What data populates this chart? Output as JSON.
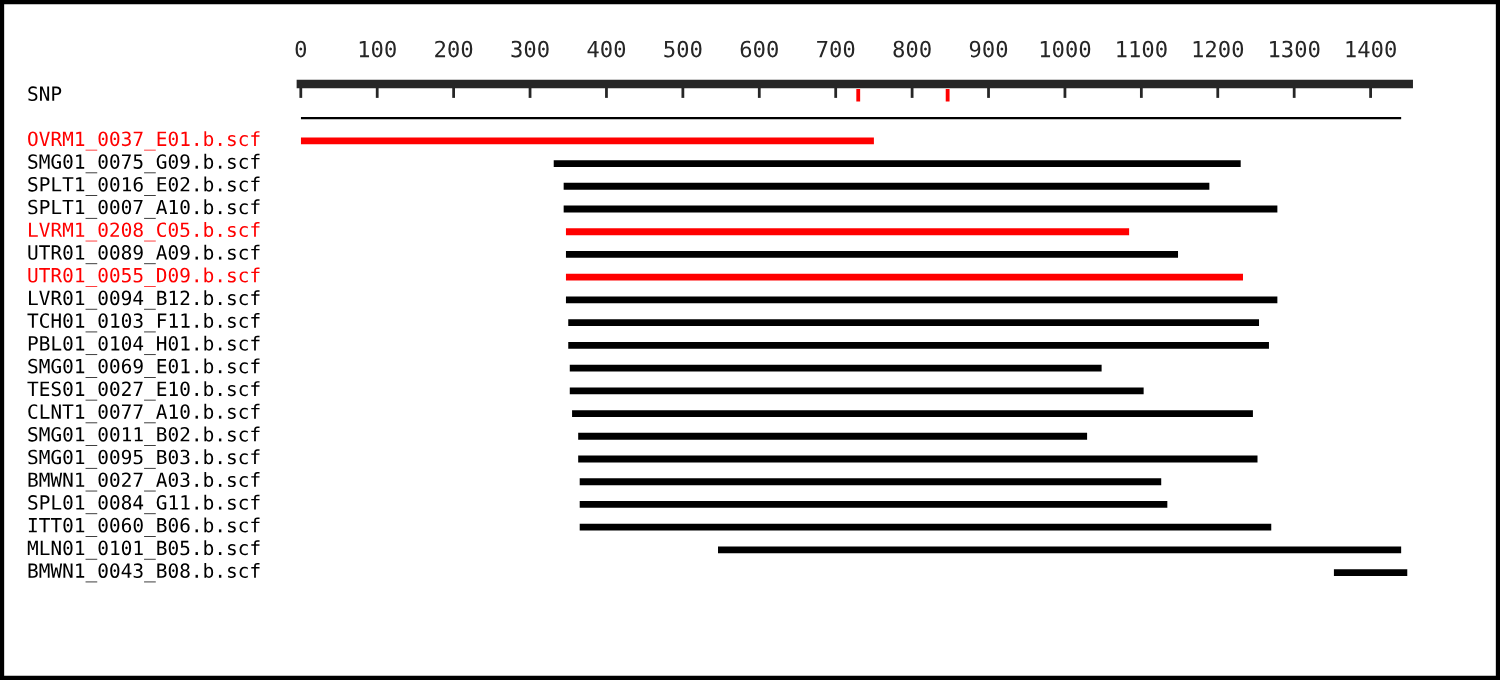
{
  "chart_data": {
    "type": "bar",
    "orientation": "horizontal",
    "categories": [
      "SNP",
      null,
      "OVRM1_0037_E01.b.scf",
      "SMG01_0075_G09.b.scf",
      "SPLT1_0016_E02.b.scf",
      "SPLT1_0007_A10.b.scf",
      "LVRM1_0208_C05.b.scf",
      "UTR01_0089_A09.b.scf",
      "UTR01_0055_D09.b.scf",
      "LVR01_0094_B12.b.scf",
      "TCH01_0103_F11.b.scf",
      "PBL01_0104_H01.b.scf",
      "SMG01_0069_E01.b.scf",
      "TES01_0027_E10.b.scf",
      "CLNT1_0077_A10.b.scf",
      "SMG01_0011_B02.b.scf",
      "SMG01_0095_B03.b.scf",
      "BMWN1_0027_A03.b.scf",
      "SPL01_0084_G11.b.scf",
      "ITT01_0060_B06.b.scf",
      "MLN01_0101_B05.b.scf",
      "BMWN1_0043_B08.b.scf"
    ],
    "series": [
      {
        "values": [
          5,
          1440,
          750,
          899,
          845,
          934,
          737,
          801,
          886,
          931,
          904,
          917,
          696,
          751,
          891,
          666,
          889,
          761,
          769,
          905,
          894,
          96
        ],
        "base": [
          727,
          0,
          0,
          331,
          344,
          344,
          347,
          347,
          347,
          347,
          350,
          350,
          352,
          352,
          355,
          363,
          363,
          365,
          365,
          365,
          546,
          1352
        ],
        "colors": [
          "#ff0000",
          "#000000",
          "#ff0000",
          "#000000",
          "#000000",
          "#000000",
          "#ff0000",
          "#000000",
          "#ff0000",
          "#000000",
          "#000000",
          "#000000",
          "#000000",
          "#000000",
          "#000000",
          "#000000",
          "#000000",
          "#000000",
          "#000000",
          "#000000",
          "#000000",
          "#000000"
        ]
      },
      {
        "values": [
          5,
          null,
          null,
          null,
          null,
          null,
          null,
          null,
          null,
          null,
          null,
          null,
          null,
          null,
          null,
          null,
          null,
          null,
          null,
          null,
          null,
          null
        ],
        "base": [
          844,
          null,
          null,
          null,
          null,
          null,
          null,
          null,
          null,
          null,
          null,
          null,
          null,
          null,
          null,
          null,
          null,
          null,
          null,
          null,
          null,
          null
        ],
        "colors": [
          "#ff0000",
          null,
          null,
          null,
          null,
          null,
          null,
          null,
          null,
          null,
          null,
          null,
          null,
          null,
          null,
          null,
          null,
          null,
          null,
          null,
          null,
          null
        ]
      }
    ],
    "xlim": [
      0,
      1450
    ],
    "xticks": [
      0,
      100,
      200,
      300,
      400,
      500,
      600,
      700,
      800,
      900,
      1000,
      1100,
      1200,
      1300,
      1400
    ],
    "grid": false,
    "legend": false
  }
}
